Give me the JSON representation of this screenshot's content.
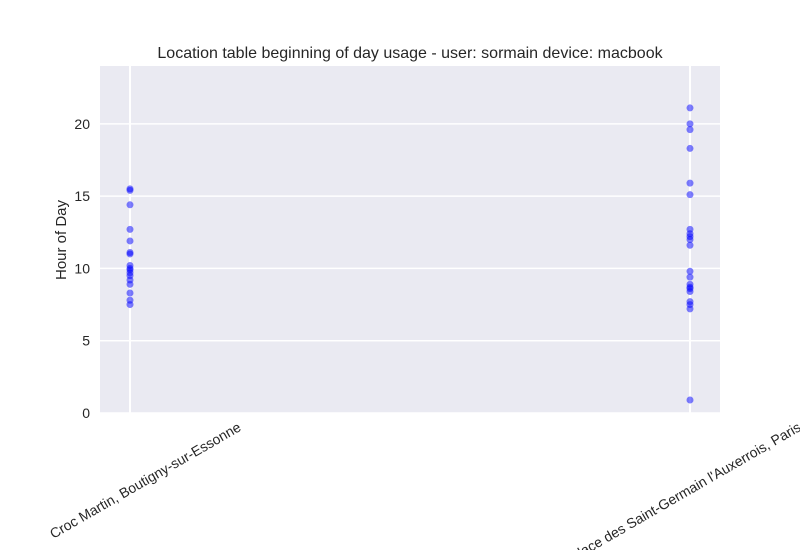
{
  "chart_data": {
    "type": "scatter",
    "title": "Location table beginning of day usage -  user: sormain device: macbook",
    "xlabel": "",
    "ylabel": "Hour of Day",
    "ylim": [
      0,
      24
    ],
    "yticks": [
      0,
      5,
      10,
      15,
      20
    ],
    "categories": [
      "Croc Martin, Boutigny-sur-Essonne",
      "Place des Saint-Germain l'Auxerrois, Paris"
    ],
    "grid": true,
    "series": [
      {
        "color": "#0000ff",
        "points": [
          {
            "x": "Croc Martin, Boutigny-sur-Essonne",
            "y": 15.5
          },
          {
            "x": "Croc Martin, Boutigny-sur-Essonne",
            "y": 15.4
          },
          {
            "x": "Croc Martin, Boutigny-sur-Essonne",
            "y": 14.4
          },
          {
            "x": "Croc Martin, Boutigny-sur-Essonne",
            "y": 12.7
          },
          {
            "x": "Croc Martin, Boutigny-sur-Essonne",
            "y": 11.9
          },
          {
            "x": "Croc Martin, Boutigny-sur-Essonne",
            "y": 11.1
          },
          {
            "x": "Croc Martin, Boutigny-sur-Essonne",
            "y": 11.0
          },
          {
            "x": "Croc Martin, Boutigny-sur-Essonne",
            "y": 10.2
          },
          {
            "x": "Croc Martin, Boutigny-sur-Essonne",
            "y": 10.0
          },
          {
            "x": "Croc Martin, Boutigny-sur-Essonne",
            "y": 9.9
          },
          {
            "x": "Croc Martin, Boutigny-sur-Essonne",
            "y": 9.7
          },
          {
            "x": "Croc Martin, Boutigny-sur-Essonne",
            "y": 9.5
          },
          {
            "x": "Croc Martin, Boutigny-sur-Essonne",
            "y": 9.2
          },
          {
            "x": "Croc Martin, Boutigny-sur-Essonne",
            "y": 8.9
          },
          {
            "x": "Croc Martin, Boutigny-sur-Essonne",
            "y": 8.3
          },
          {
            "x": "Croc Martin, Boutigny-sur-Essonne",
            "y": 7.8
          },
          {
            "x": "Croc Martin, Boutigny-sur-Essonne",
            "y": 7.5
          },
          {
            "x": "Place des Saint-Germain l'Auxerrois, Paris",
            "y": 21.1
          },
          {
            "x": "Place des Saint-Germain l'Auxerrois, Paris",
            "y": 20.0
          },
          {
            "x": "Place des Saint-Germain l'Auxerrois, Paris",
            "y": 19.6
          },
          {
            "x": "Place des Saint-Germain l'Auxerrois, Paris",
            "y": 18.3
          },
          {
            "x": "Place des Saint-Germain l'Auxerrois, Paris",
            "y": 15.9
          },
          {
            "x": "Place des Saint-Germain l'Auxerrois, Paris",
            "y": 15.1
          },
          {
            "x": "Place des Saint-Germain l'Auxerrois, Paris",
            "y": 12.7
          },
          {
            "x": "Place des Saint-Germain l'Auxerrois, Paris",
            "y": 12.4
          },
          {
            "x": "Place des Saint-Germain l'Auxerrois, Paris",
            "y": 12.2
          },
          {
            "x": "Place des Saint-Germain l'Auxerrois, Paris",
            "y": 12.0
          },
          {
            "x": "Place des Saint-Germain l'Auxerrois, Paris",
            "y": 11.6
          },
          {
            "x": "Place des Saint-Germain l'Auxerrois, Paris",
            "y": 9.8
          },
          {
            "x": "Place des Saint-Germain l'Auxerrois, Paris",
            "y": 9.4
          },
          {
            "x": "Place des Saint-Germain l'Auxerrois, Paris",
            "y": 8.9
          },
          {
            "x": "Place des Saint-Germain l'Auxerrois, Paris",
            "y": 8.7
          },
          {
            "x": "Place des Saint-Germain l'Auxerrois, Paris",
            "y": 8.6
          },
          {
            "x": "Place des Saint-Germain l'Auxerrois, Paris",
            "y": 8.4
          },
          {
            "x": "Place des Saint-Germain l'Auxerrois, Paris",
            "y": 7.7
          },
          {
            "x": "Place des Saint-Germain l'Auxerrois, Paris",
            "y": 7.5
          },
          {
            "x": "Place des Saint-Germain l'Auxerrois, Paris",
            "y": 7.2
          },
          {
            "x": "Place des Saint-Germain l'Auxerrois, Paris",
            "y": 0.9
          }
        ]
      }
    ]
  }
}
